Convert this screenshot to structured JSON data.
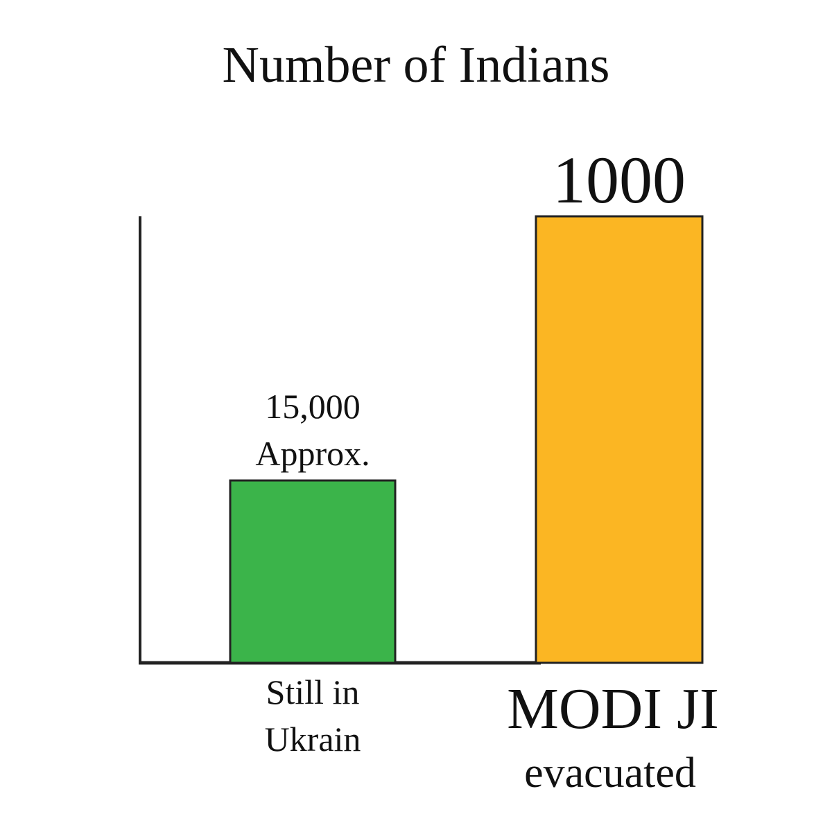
{
  "title": "Number of Indians",
  "bars": [
    {
      "value_lines": [
        "15,000",
        "Approx."
      ],
      "label_lines": [
        "Still in",
        "Ukrain"
      ]
    },
    {
      "value_lines": [
        "1000"
      ],
      "label_lines": [
        "MODI JI",
        "evacuated"
      ]
    }
  ]
}
